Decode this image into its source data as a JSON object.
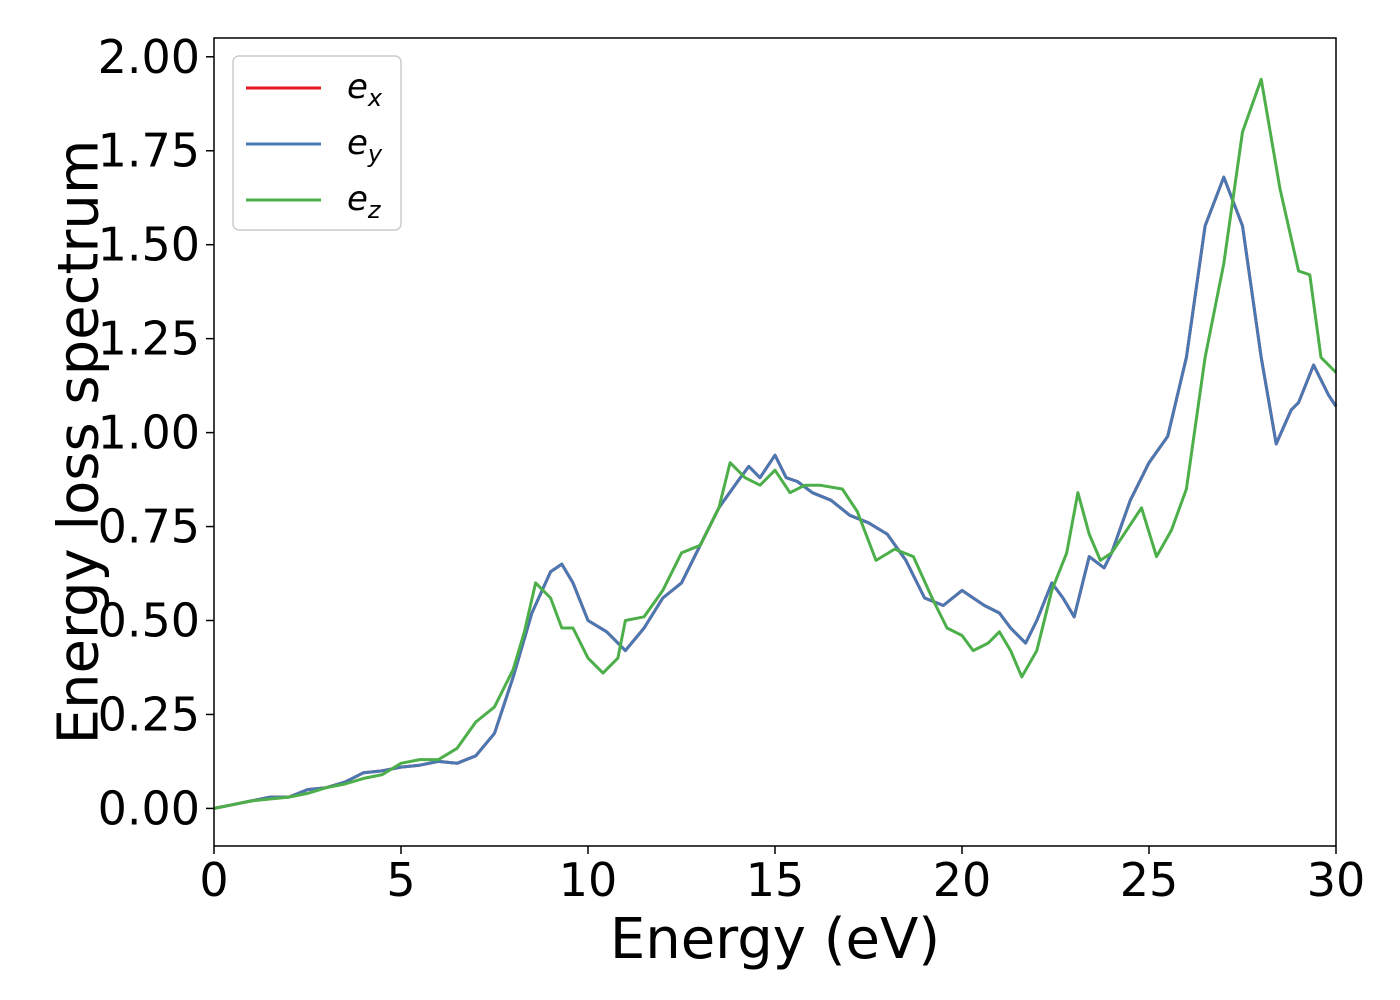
{
  "chart_data": {
    "type": "line",
    "xlabel": "Energy (eV)",
    "ylabel": "Energy loss spectrum",
    "xlim": [
      0,
      30
    ],
    "ylim": [
      -0.1,
      2.05
    ],
    "xticks": [
      "0",
      "5",
      "10",
      "15",
      "20",
      "25",
      "30"
    ],
    "yticks": [
      "0.00",
      "0.25",
      "0.50",
      "0.75",
      "1.00",
      "1.25",
      "1.50",
      "1.75",
      "2.00"
    ],
    "grid": false,
    "legend_position": "top-left",
    "series": [
      {
        "name": "e",
        "subscript": "x",
        "color": "#e41a1c",
        "x": [
          0,
          0.5,
          1,
          1.5,
          2,
          2.5,
          3,
          3.5,
          4,
          4.5,
          5,
          5.5,
          6,
          6.5,
          7,
          7.5,
          8,
          8.5,
          9,
          9.3,
          9.6,
          10,
          10.5,
          11,
          11.5,
          12,
          12.5,
          13,
          13.5,
          14,
          14.3,
          14.6,
          15,
          15.3,
          15.6,
          16,
          16.5,
          17,
          17.5,
          18,
          18.5,
          19,
          19.5,
          20,
          20.3,
          20.6,
          21,
          21.3,
          21.7,
          22,
          22.4,
          22.7,
          23,
          23.4,
          23.8,
          24,
          24.5,
          25,
          25.5,
          26,
          26.5,
          27,
          27.5,
          28,
          28.4,
          28.8,
          29,
          29.4,
          29.8,
          30
        ],
        "y": [
          0,
          0.01,
          0.02,
          0.03,
          0.03,
          0.05,
          0.055,
          0.07,
          0.095,
          0.1,
          0.11,
          0.115,
          0.125,
          0.12,
          0.14,
          0.2,
          0.35,
          0.52,
          0.63,
          0.65,
          0.6,
          0.5,
          0.47,
          0.42,
          0.48,
          0.56,
          0.6,
          0.7,
          0.8,
          0.87,
          0.91,
          0.88,
          0.94,
          0.88,
          0.87,
          0.84,
          0.82,
          0.78,
          0.76,
          0.73,
          0.66,
          0.56,
          0.54,
          0.58,
          0.56,
          0.54,
          0.52,
          0.48,
          0.44,
          0.5,
          0.6,
          0.56,
          0.51,
          0.67,
          0.64,
          0.68,
          0.82,
          0.92,
          0.99,
          1.2,
          1.55,
          1.68,
          1.55,
          1.2,
          0.97,
          1.06,
          1.08,
          1.18,
          1.1,
          1.07
        ]
      },
      {
        "name": "e",
        "subscript": "y",
        "color": "#4a78b2",
        "x": [
          0,
          0.5,
          1,
          1.5,
          2,
          2.5,
          3,
          3.5,
          4,
          4.5,
          5,
          5.5,
          6,
          6.5,
          7,
          7.5,
          8,
          8.5,
          9,
          9.3,
          9.6,
          10,
          10.5,
          11,
          11.5,
          12,
          12.5,
          13,
          13.5,
          14,
          14.3,
          14.6,
          15,
          15.3,
          15.6,
          16,
          16.5,
          17,
          17.5,
          18,
          18.5,
          19,
          19.5,
          20,
          20.3,
          20.6,
          21,
          21.3,
          21.7,
          22,
          22.4,
          22.7,
          23,
          23.4,
          23.8,
          24,
          24.5,
          25,
          25.5,
          26,
          26.5,
          27,
          27.5,
          28,
          28.4,
          28.8,
          29,
          29.4,
          29.8,
          30
        ],
        "y": [
          0,
          0.01,
          0.02,
          0.03,
          0.03,
          0.05,
          0.055,
          0.07,
          0.095,
          0.1,
          0.11,
          0.115,
          0.125,
          0.12,
          0.14,
          0.2,
          0.35,
          0.52,
          0.63,
          0.65,
          0.6,
          0.5,
          0.47,
          0.42,
          0.48,
          0.56,
          0.6,
          0.7,
          0.8,
          0.87,
          0.91,
          0.88,
          0.94,
          0.88,
          0.87,
          0.84,
          0.82,
          0.78,
          0.76,
          0.73,
          0.66,
          0.56,
          0.54,
          0.58,
          0.56,
          0.54,
          0.52,
          0.48,
          0.44,
          0.5,
          0.6,
          0.56,
          0.51,
          0.67,
          0.64,
          0.68,
          0.82,
          0.92,
          0.99,
          1.2,
          1.55,
          1.68,
          1.55,
          1.2,
          0.97,
          1.06,
          1.08,
          1.18,
          1.1,
          1.07
        ]
      },
      {
        "name": "e",
        "subscript": "z",
        "color": "#4daf4a",
        "x": [
          0,
          0.5,
          1,
          1.5,
          2,
          2.5,
          3,
          3.5,
          4,
          4.5,
          5,
          5.5,
          6,
          6.5,
          7,
          7.5,
          8,
          8.3,
          8.6,
          9,
          9.3,
          9.6,
          10,
          10.4,
          10.8,
          11,
          11.5,
          12,
          12.5,
          13,
          13.5,
          13.8,
          14.2,
          14.6,
          15,
          15.4,
          15.8,
          16.2,
          16.8,
          17.2,
          17.7,
          18.2,
          18.7,
          19.2,
          19.6,
          20,
          20.3,
          20.7,
          21,
          21.3,
          21.6,
          22,
          22.4,
          22.8,
          23.1,
          23.4,
          23.7,
          24,
          24.4,
          24.8,
          25.2,
          25.6,
          26,
          26.5,
          27,
          27.5,
          28,
          28.5,
          29,
          29.3,
          29.6,
          30
        ],
        "y": [
          0,
          0.01,
          0.02,
          0.025,
          0.03,
          0.04,
          0.055,
          0.065,
          0.08,
          0.09,
          0.12,
          0.13,
          0.13,
          0.16,
          0.23,
          0.27,
          0.37,
          0.47,
          0.6,
          0.56,
          0.48,
          0.48,
          0.4,
          0.36,
          0.4,
          0.5,
          0.51,
          0.58,
          0.68,
          0.7,
          0.8,
          0.92,
          0.88,
          0.86,
          0.9,
          0.84,
          0.86,
          0.86,
          0.85,
          0.79,
          0.66,
          0.69,
          0.67,
          0.56,
          0.48,
          0.46,
          0.42,
          0.44,
          0.47,
          0.42,
          0.35,
          0.42,
          0.58,
          0.68,
          0.84,
          0.73,
          0.66,
          0.68,
          0.74,
          0.8,
          0.67,
          0.74,
          0.85,
          1.2,
          1.45,
          1.8,
          1.94,
          1.65,
          1.43,
          1.42,
          1.2,
          1.16
        ]
      }
    ]
  }
}
